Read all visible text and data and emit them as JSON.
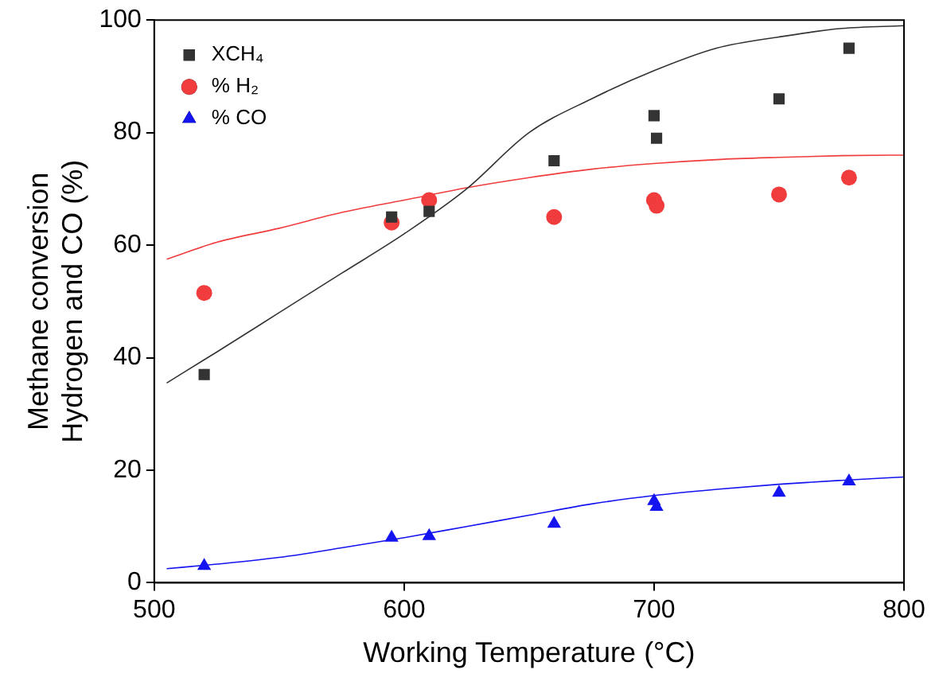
{
  "chart_data": {
    "type": "scatter",
    "xlabel": "Working Temperature (°C)",
    "ylabel": "Methane conversion\nHydrogen and CO (%)",
    "xlim": [
      500,
      800
    ],
    "ylim": [
      0,
      100
    ],
    "xticks": [
      500,
      600,
      700,
      800
    ],
    "yticks": [
      0,
      20,
      40,
      60,
      80,
      100
    ],
    "grid": false,
    "legend": "top left",
    "series": [
      {
        "name": "XCH₄",
        "color": "#333333",
        "marker": "square",
        "x": [
          520,
          595,
          610,
          660,
          700,
          701,
          750,
          778
        ],
        "values": [
          37,
          65,
          66,
          75,
          83,
          79,
          86,
          95
        ]
      },
      {
        "name": "% H₂",
        "color": "#f03c3c",
        "marker": "circle",
        "x": [
          520,
          595,
          610,
          660,
          700,
          701,
          750,
          778
        ],
        "values": [
          51.5,
          64,
          68,
          65,
          68,
          67,
          69,
          72
        ]
      },
      {
        "name": "% CO",
        "color": "#1414f0",
        "marker": "triangle",
        "x": [
          520,
          595,
          610,
          660,
          700,
          701,
          750,
          778
        ],
        "values": [
          3,
          8,
          8.3,
          10.5,
          14.5,
          13.5,
          16,
          18
        ]
      },
      {
        "type": "line",
        "color": "#333333",
        "marker": "none",
        "x": [
          505,
          525,
          550,
          575,
          600,
          625,
          650,
          675,
          700,
          725,
          750,
          775,
          800
        ],
        "values": [
          35.5,
          41,
          48,
          55,
          62,
          70,
          80,
          86,
          91,
          95,
          97,
          98.5,
          99
        ]
      },
      {
        "type": "line",
        "color": "#f03c3c",
        "marker": "none",
        "x": [
          505,
          525,
          550,
          575,
          600,
          625,
          650,
          675,
          700,
          725,
          750,
          775,
          800
        ],
        "values": [
          57.5,
          60.5,
          63,
          65.8,
          68,
          70.2,
          72,
          73.5,
          74.5,
          75.2,
          75.6,
          75.9,
          76
        ]
      },
      {
        "type": "line",
        "color": "#1414f0",
        "marker": "none",
        "x": [
          505,
          525,
          550,
          575,
          600,
          625,
          650,
          675,
          700,
          725,
          750,
          775,
          800
        ],
        "values": [
          2.5,
          3.3,
          4.5,
          6.2,
          8,
          10,
          12,
          14,
          15.5,
          16.6,
          17.5,
          18.2,
          18.8
        ]
      }
    ]
  }
}
